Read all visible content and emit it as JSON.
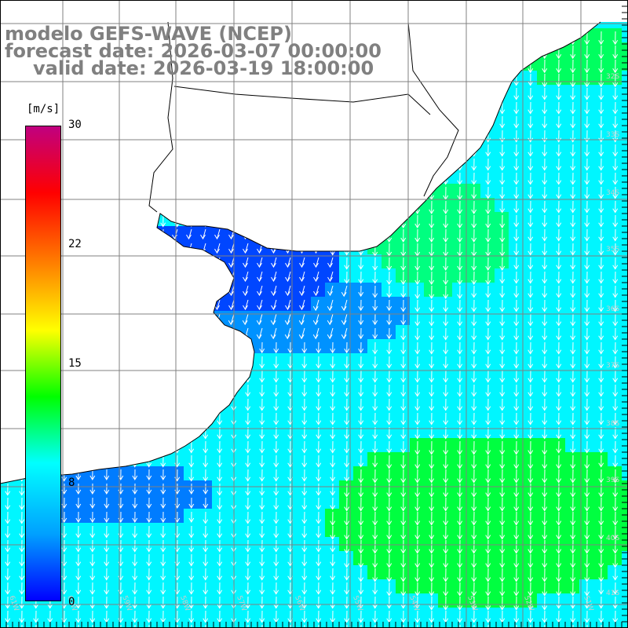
{
  "title": {
    "line1": "modelo GEFS-WAVE (NCEP)",
    "line2": "forecast date: 2026-03-07 00:00:00",
    "line3": "valid date: 2026-03-19 18:00:00"
  },
  "colorbar": {
    "unit_label": "[m/s]",
    "ticks": [
      {
        "label": "30",
        "value": 30
      },
      {
        "label": "22",
        "value": 22
      },
      {
        "label": "15",
        "value": 15
      },
      {
        "label": "8",
        "value": 8
      },
      {
        "label": "0",
        "value": 0
      }
    ],
    "colors": [
      "#0000ff",
      "#00a0ff",
      "#00ffff",
      "#00ff00",
      "#ffff00",
      "#ff8000",
      "#ff0000",
      "#c00080"
    ]
  },
  "map": {
    "lon_labels": [
      "61W",
      "60W",
      "59W",
      "58W",
      "57W",
      "56W",
      "55W",
      "54W",
      "53W",
      "52W",
      "51W"
    ],
    "lat_labels": [
      "32S",
      "33S",
      "34S",
      "35S",
      "36S",
      "37S",
      "38S",
      "39S",
      "40S",
      "41S"
    ],
    "field": "wind speed",
    "arrow_direction": "south",
    "colors": {
      "land": "#ffffff",
      "coastline": "#000000",
      "grid": "#808080",
      "arrow": "#ffffff"
    }
  }
}
